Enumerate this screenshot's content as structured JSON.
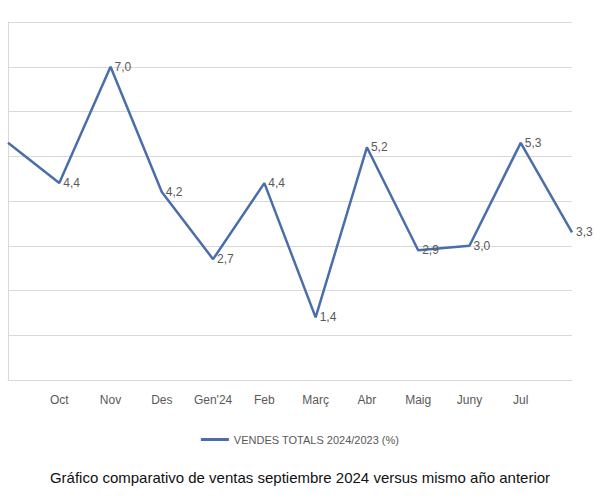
{
  "chart_data": {
    "type": "line",
    "title": "Gráfico comparativo de ventas septiembre 2024 versus mismo año anterior",
    "categories": [
      null,
      "Oct",
      "Nov",
      "Des",
      "Gen'24",
      "Feb",
      "Març",
      "Abr",
      "Maig",
      "Juny",
      "Jul",
      null
    ],
    "series": [
      {
        "name": "VENDES TOTALS 2024/2023 (%)",
        "color": "#4a6ea9",
        "values": [
          5.3,
          4.4,
          7.0,
          4.2,
          2.7,
          4.4,
          1.4,
          5.2,
          2.9,
          3.0,
          5.3,
          3.3
        ],
        "value_labels": [
          null,
          "4,4",
          "7,0",
          "4,2",
          "2,7",
          "4,4",
          "1,4",
          "5,2",
          "2,9",
          "3,0",
          "5,3",
          "3,3"
        ]
      }
    ],
    "ylim": [
      0,
      8
    ],
    "yticks": [
      0,
      1,
      2,
      3,
      4,
      5,
      6,
      7,
      8
    ],
    "grid": true,
    "legend": "bottom",
    "data_labels": true,
    "tick_labels": "x"
  }
}
